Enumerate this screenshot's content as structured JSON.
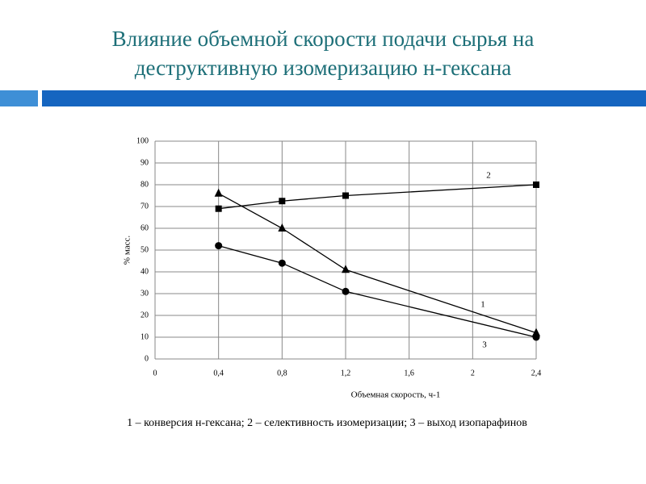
{
  "chart_data": {
    "type": "line",
    "title": "Влияние объемной скорости подачи сырья на деструктивную изомеризацию н-гексана",
    "x_label": "Объемная скорость, ч-1",
    "y_label": "% масс.",
    "caption": "1 – конверсия н-гексана; 2 – селективность изомеризации; 3 – выход изопарафинов",
    "x": [
      0.4,
      0.8,
      1.2,
      2.4
    ],
    "series": [
      {
        "name": "1",
        "color": "#000000",
        "marker": "triangle",
        "values": [
          76,
          60,
          41,
          12
        ]
      },
      {
        "name": "2",
        "color": "#000000",
        "marker": "square",
        "values": [
          69,
          72.5,
          75,
          80
        ]
      },
      {
        "name": "3",
        "color": "#000000",
        "marker": "circle",
        "values": [
          52,
          44,
          31,
          10
        ]
      }
    ],
    "xlim": [
      0,
      2.4
    ],
    "xticks": [
      0,
      {
        "value": 0.4,
        "label": "0,4"
      },
      {
        "value": 0.8,
        "label": "0,8"
      },
      {
        "value": 1.2,
        "label": "1,2"
      },
      {
        "value": 1.6,
        "label": "1,6"
      },
      2,
      {
        "value": 2.4,
        "label": "2,4"
      }
    ],
    "ylim": [
      0,
      100
    ],
    "yticks": [
      0,
      10,
      20,
      30,
      40,
      50,
      60,
      70,
      80,
      90,
      100
    ],
    "grid": true
  }
}
